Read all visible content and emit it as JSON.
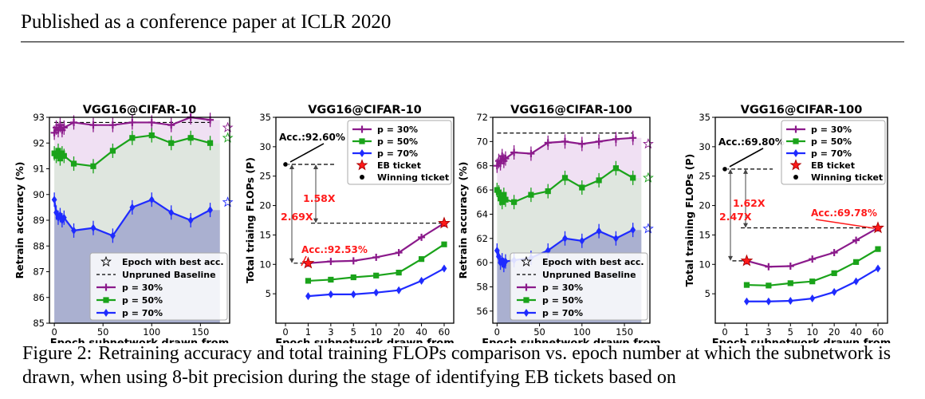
{
  "header": {
    "text": "Published as a conference paper at ICLR 2020"
  },
  "caption": {
    "label": "Figure 2:",
    "text": "Retraining accuracy and total training FLOPs comparison vs. epoch number at which the subnetwork is drawn, when using 8-bit precision during the stage of identifying EB tickets based on"
  },
  "colors": {
    "p30": "#8b1a8b",
    "p50": "#1aa31a",
    "p70": "#1f2bff",
    "eb": "#ff1a1a",
    "fill30": "#f0e0f3",
    "fill50": "#dfe6df",
    "fill70": "#aab0d0"
  },
  "chart_data": [
    {
      "type": "line",
      "title": "VGG16@CIFAR-10",
      "xlabel": "Epoch subnetwork drawn from",
      "ylabel": "Retrain accuracy (%)",
      "xlim": [
        -5,
        180
      ],
      "ylim": [
        85,
        93
      ],
      "xticks": [
        0,
        50,
        100,
        150
      ],
      "yticks": [
        85,
        86,
        87,
        88,
        89,
        90,
        91,
        92,
        93
      ],
      "baseline": 92.8,
      "legend": {
        "position": "bottom-right",
        "entries": [
          "Epoch with best acc.",
          "Unpruned Baseline",
          "p = 30%",
          "p = 50%",
          "p = 70%"
        ]
      },
      "series": [
        {
          "name": "p = 30%",
          "color": "p30",
          "x": [
            0,
            2,
            4,
            6,
            8,
            10,
            20,
            40,
            60,
            80,
            100,
            120,
            140,
            160
          ],
          "y": [
            92.4,
            92.6,
            92.5,
            92.7,
            92.5,
            92.6,
            92.8,
            92.7,
            92.7,
            92.8,
            92.8,
            92.7,
            93.0,
            92.9
          ],
          "best": [
            178,
            92.6
          ]
        },
        {
          "name": "p = 50%",
          "color": "p50",
          "x": [
            0,
            2,
            4,
            6,
            8,
            10,
            20,
            40,
            60,
            80,
            100,
            120,
            140,
            160
          ],
          "y": [
            91.6,
            91.5,
            91.7,
            91.4,
            91.6,
            91.5,
            91.2,
            91.1,
            91.7,
            92.2,
            92.3,
            92.0,
            92.2,
            92.0
          ],
          "best": [
            178,
            92.2
          ]
        },
        {
          "name": "p = 70%",
          "color": "p70",
          "x": [
            0,
            2,
            4,
            6,
            8,
            10,
            20,
            40,
            60,
            80,
            100,
            120,
            140,
            160
          ],
          "y": [
            89.8,
            89.3,
            89.1,
            89.2,
            89.0,
            89.1,
            88.6,
            88.7,
            88.4,
            89.5,
            89.8,
            89.3,
            89.0,
            89.4
          ],
          "best": [
            178,
            89.7
          ]
        }
      ]
    },
    {
      "type": "line",
      "title": "VGG16@CIFAR-10",
      "xlabel": "Epoch subnetwork drawn from",
      "ylabel": "Total triaing FLOPs (P)",
      "xticks": [
        "0",
        "1",
        "3",
        "5",
        "10",
        "20",
        "40",
        "60"
      ],
      "ylim": [
        0,
        35
      ],
      "yticks": [
        5,
        10,
        15,
        20,
        25,
        30,
        35
      ],
      "legend": {
        "position": "top-right",
        "entries": [
          "p = 30%",
          "p = 50%",
          "p = 70%",
          "EB ticket",
          "Winning ticket"
        ]
      },
      "series": [
        {
          "name": "p = 30%",
          "color": "p30",
          "x": [
            "1",
            "3",
            "5",
            "10",
            "20",
            "40",
            "60"
          ],
          "y": [
            10.2,
            10.5,
            10.6,
            11.2,
            12.0,
            14.6,
            17.0
          ]
        },
        {
          "name": "p = 50%",
          "color": "p50",
          "x": [
            "1",
            "3",
            "5",
            "10",
            "20",
            "40",
            "60"
          ],
          "y": [
            7.2,
            7.4,
            7.8,
            8.1,
            8.6,
            10.9,
            13.4
          ]
        },
        {
          "name": "p = 70%",
          "color": "p70",
          "x": [
            "1",
            "3",
            "5",
            "10",
            "20",
            "40",
            "60"
          ],
          "y": [
            4.6,
            4.9,
            4.9,
            5.2,
            5.6,
            7.2,
            9.3
          ]
        }
      ],
      "eb_ticket": {
        "x": "1",
        "y": 10.2
      },
      "eb_ticket_end": {
        "x": "60",
        "y": 17.0
      },
      "winning_ticket": {
        "x": "0",
        "y": 27.0
      },
      "annotations": [
        {
          "text": "Acc.:92.60%",
          "color": "#000000"
        },
        {
          "text": "Acc.:92.53%",
          "color": "#ff1a1a"
        },
        {
          "text": "1.58X",
          "color": "#ff1a1a"
        },
        {
          "text": "2.69X",
          "color": "#ff1a1a"
        }
      ]
    },
    {
      "type": "line",
      "title": "VGG16@CIFAR-100",
      "xlabel": "Epoch subnetwork drawn from",
      "ylabel": "Retrain accuracy (%)",
      "xlim": [
        -5,
        180
      ],
      "ylim": [
        55,
        72
      ],
      "xticks": [
        0,
        50,
        100,
        150
      ],
      "yticks": [
        56,
        58,
        60,
        62,
        64,
        66,
        68,
        70,
        72
      ],
      "baseline": 70.7,
      "legend": {
        "position": "bottom-right",
        "entries": [
          "Epoch with best acc.",
          "Unpruned Baseline",
          "p = 30%",
          "p = 50%",
          "p = 70%"
        ]
      },
      "series": [
        {
          "name": "p = 30%",
          "color": "p30",
          "x": [
            0,
            2,
            4,
            6,
            8,
            10,
            20,
            40,
            60,
            80,
            100,
            120,
            140,
            160
          ],
          "y": [
            68.0,
            68.4,
            68.2,
            68.8,
            68.4,
            68.6,
            69.1,
            69.0,
            69.9,
            70.0,
            69.8,
            70.0,
            70.2,
            70.3
          ],
          "best": [
            178,
            69.8
          ]
        },
        {
          "name": "p = 50%",
          "color": "p50",
          "x": [
            0,
            2,
            4,
            6,
            8,
            10,
            20,
            40,
            60,
            80,
            100,
            120,
            140,
            160
          ],
          "y": [
            66.0,
            65.8,
            65.3,
            65.0,
            65.6,
            65.2,
            65.0,
            65.6,
            65.9,
            67.0,
            66.2,
            66.8,
            67.8,
            67.0
          ],
          "best": [
            178,
            67.0
          ]
        },
        {
          "name": "p = 70%",
          "color": "p70",
          "x": [
            0,
            2,
            4,
            6,
            8,
            10,
            20,
            40,
            60,
            80,
            100,
            120,
            140,
            160
          ],
          "y": [
            61.0,
            60.5,
            60.0,
            60.2,
            59.8,
            60.1,
            60.2,
            60.4,
            61.0,
            62.0,
            61.8,
            62.6,
            62.0,
            62.7
          ],
          "best": [
            178,
            62.8
          ]
        }
      ]
    },
    {
      "type": "line",
      "title": "VGG16@CIFAR-100",
      "xlabel": "Epoch subnetwork drawn from",
      "ylabel": "Total training FLOPs (P)",
      "xticks": [
        "0",
        "1",
        "3",
        "5",
        "10",
        "20",
        "40",
        "60"
      ],
      "ylim": [
        0,
        35
      ],
      "yticks": [
        5,
        10,
        15,
        20,
        25,
        30,
        35
      ],
      "legend": {
        "position": "top-right",
        "entries": [
          "p = 30%",
          "p = 50%",
          "p = 70%",
          "EB ticket",
          "Winning ticket"
        ]
      },
      "series": [
        {
          "name": "p = 30%",
          "color": "p30",
          "x": [
            "1",
            "3",
            "5",
            "10",
            "20",
            "40",
            "60"
          ],
          "y": [
            10.6,
            9.6,
            9.7,
            10.9,
            12.0,
            14.1,
            16.2
          ]
        },
        {
          "name": "p = 50%",
          "color": "p50",
          "x": [
            "1",
            "3",
            "5",
            "10",
            "20",
            "40",
            "60"
          ],
          "y": [
            6.5,
            6.4,
            6.8,
            7.1,
            8.5,
            10.4,
            12.6
          ]
        },
        {
          "name": "p = 70%",
          "color": "p70",
          "x": [
            "1",
            "3",
            "5",
            "10",
            "20",
            "40",
            "60"
          ],
          "y": [
            3.7,
            3.7,
            3.8,
            4.2,
            5.3,
            7.1,
            9.3
          ]
        }
      ],
      "eb_ticket": {
        "x": "1",
        "y": 10.6
      },
      "eb_ticket_end": {
        "x": "60",
        "y": 16.2
      },
      "winning_ticket": {
        "x": "0",
        "y": 26.2
      },
      "annotations": [
        {
          "text": "Acc.:69.80%",
          "color": "#000000"
        },
        {
          "text": "Acc.:69.78%",
          "color": "#ff1a1a"
        },
        {
          "text": "1.62X",
          "color": "#ff1a1a"
        },
        {
          "text": "2.47X",
          "color": "#ff1a1a"
        }
      ]
    }
  ]
}
